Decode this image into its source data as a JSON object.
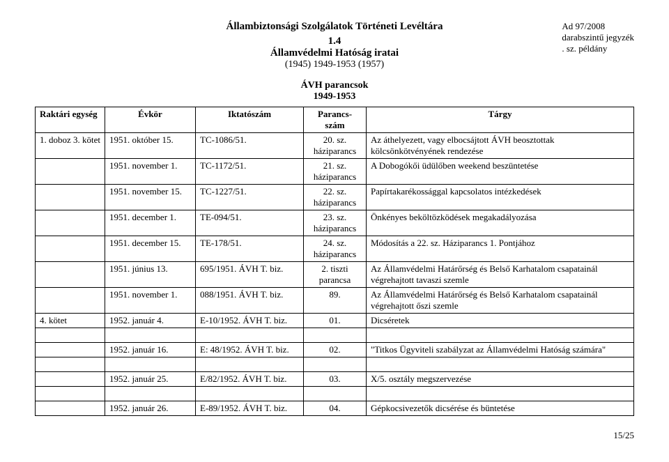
{
  "header": {
    "archive_title": "Állambiztonsági Szolgálatok Történeti Levéltára",
    "series_num": "1.4",
    "series_title": "Államvédelmi Hatóság iratai",
    "series_years": "(1945) 1949-1953 (1957)",
    "right_ref": "Ad 97/2008",
    "right_line2": "darabszintű jegyzék",
    "right_line3": ". sz. példány"
  },
  "section_title_1": "ÁVH parancsok",
  "section_title_2": "1949-1953",
  "columns": {
    "c1": "Raktári egység",
    "c2": "Évkör",
    "c3": "Iktatószám",
    "c4": "Parancs- szám",
    "c5": "Tárgy"
  },
  "rows": [
    {
      "c1": "1. doboz 3. kötet",
      "c2": "1951. október 15.",
      "c3": "TC-1086/51.",
      "c4": "20. sz. háziparancs",
      "c5": "Az áthelyezett, vagy elbocsájtott ÁVH beosztottak kölcsönkötvényének rendezése"
    },
    {
      "c1": "",
      "c2": "1951. november 1.",
      "c3": "TC-1172/51.",
      "c4": "21. sz. háziparancs",
      "c5": "A Dobogókői üdülőben weekend beszüntetése"
    },
    {
      "c1": "",
      "c2": "1951. november 15.",
      "c3": "TC-1227/51.",
      "c4": "22. sz. háziparancs",
      "c5": "Papírtakarékossággal kapcsolatos intézkedések"
    },
    {
      "c1": "",
      "c2": "1951. december 1.",
      "c3": "TE-094/51.",
      "c4": "23. sz. háziparancs",
      "c5": "Önkényes beköltözködések megakadályozása"
    },
    {
      "c1": "",
      "c2": "1951. december 15.",
      "c3": "TE-178/51.",
      "c4": "24. sz. háziparancs",
      "c5": "Módosítás a 22. sz. Háziparancs 1. Pontjához"
    },
    {
      "c1": "",
      "c2": "1951. június 13.",
      "c3": "695/1951. ÁVH T. biz.",
      "c4": "2. tiszti parancsa",
      "c5": "Az Államvédelmi Határőrség és Belső Karhatalom csapatainál végrehajtott tavaszi szemle"
    },
    {
      "c1": "",
      "c2": "1951. november 1.",
      "c3": "088/1951. ÁVH T. biz.",
      "c4": "89.",
      "c5": "Az Államvédelmi Határőrség és Belső Karhatalom csapatainál végrehajtott őszi szemle"
    },
    {
      "c1": "4. kötet",
      "c2": "1952. január 4.",
      "c3": "E-10/1952. ÁVH T. biz.",
      "c4": "01.",
      "c5": "Dicséretek"
    },
    {
      "blank": true
    },
    {
      "c1": "",
      "c2": "1952. január 16.",
      "c3": "E: 48/1952. ÁVH T. biz.",
      "c4": "02.",
      "c5": "\"Titkos Ügyviteli szabályzat az Államvédelmi Hatóság számára\""
    },
    {
      "blank": true
    },
    {
      "c1": "",
      "c2": "1952. január 25.",
      "c3": "E/82/1952. ÁVH T. biz.",
      "c4": "03.",
      "c5": "X/5. osztály megszervezése"
    },
    {
      "blank": true
    },
    {
      "c1": "",
      "c2": "1952. január 26.",
      "c3": "E-89/1952. ÁVH T. biz.",
      "c4": "04.",
      "c5": "Gépkocsivezetők dicsérése és büntetése"
    }
  ],
  "footer": "15/25"
}
